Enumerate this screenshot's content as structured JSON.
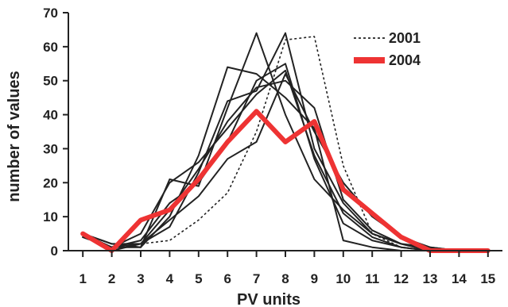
{
  "chart_data": {
    "type": "line",
    "title": "",
    "xlabel": "PV units",
    "ylabel": "number of values",
    "x": [
      1,
      2,
      3,
      4,
      5,
      6,
      7,
      8,
      9,
      10,
      11,
      12,
      13,
      14,
      15
    ],
    "xlim": [
      0.5,
      15.5
    ],
    "ylim": [
      0,
      70
    ],
    "yticks": [
      0,
      10,
      20,
      30,
      40,
      50,
      60,
      70
    ],
    "grid": false,
    "legend_position": "top-right",
    "series": [
      {
        "name": "2001",
        "style": "dotted",
        "color": "#222222",
        "values": [
          5,
          1,
          2,
          3,
          9,
          17,
          35,
          62,
          63,
          25,
          5,
          1,
          0,
          0,
          0
        ]
      },
      {
        "name": "",
        "style": "solid",
        "color": "#222222",
        "values": [
          4,
          1,
          1,
          21,
          19,
          42,
          64,
          40,
          21,
          12,
          5,
          2,
          0,
          0,
          0
        ]
      },
      {
        "name": "",
        "style": "solid",
        "color": "#222222",
        "values": [
          5,
          2,
          1,
          10,
          28,
          54,
          52,
          45,
          36,
          3,
          1,
          0,
          0,
          0,
          0
        ]
      },
      {
        "name": "",
        "style": "solid",
        "color": "#222222",
        "values": [
          5,
          0,
          2,
          7,
          23,
          44,
          47,
          64,
          30,
          14,
          5,
          2,
          1,
          0,
          0
        ]
      },
      {
        "name": "",
        "style": "solid",
        "color": "#222222",
        "values": [
          4,
          1,
          3,
          14,
          20,
          32,
          50,
          55,
          27,
          8,
          3,
          1,
          0,
          0,
          0
        ]
      },
      {
        "name": "",
        "style": "solid",
        "color": "#222222",
        "values": [
          5,
          2,
          2,
          12,
          24,
          38,
          48,
          50,
          42,
          15,
          6,
          2,
          0,
          0,
          0
        ]
      },
      {
        "name": "",
        "style": "solid",
        "color": "#222222",
        "values": [
          4,
          1,
          5,
          20,
          26,
          36,
          46,
          53,
          28,
          11,
          4,
          1,
          0,
          0,
          0
        ]
      },
      {
        "name": "",
        "style": "solid",
        "color": "#222222",
        "values": [
          5,
          1,
          2,
          9,
          16,
          27,
          32,
          52,
          35,
          20,
          10,
          4,
          1,
          0,
          0
        ]
      },
      {
        "name": "2004",
        "style": "thick",
        "color": "#ee3333",
        "values": [
          5,
          0,
          9,
          12,
          21,
          32,
          41,
          32,
          38,
          18,
          11,
          4,
          0,
          0,
          0
        ]
      }
    ]
  }
}
